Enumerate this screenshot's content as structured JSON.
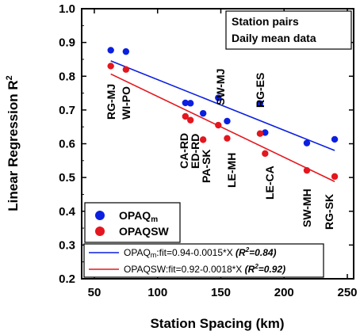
{
  "chart_data": {
    "type": "scatter",
    "xlabel": "Station Spacing (km)",
    "ylabel": "Linear Regression R",
    "ylabel_sup": "2",
    "xlim": [
      40,
      255
    ],
    "ylim": [
      0.2,
      1.0
    ],
    "xticks": [
      "50",
      "100",
      "150",
      "200",
      "250"
    ],
    "yticks": [
      "0.2",
      "0.3",
      "0.4",
      "0.5",
      "0.6",
      "0.7",
      "0.8",
      "0.9",
      "1.0"
    ],
    "xtick_values": [
      50,
      100,
      150,
      200,
      250
    ],
    "ytick_values": [
      0.2,
      0.3,
      0.4,
      0.5,
      0.6,
      0.7,
      0.8,
      0.9,
      1.0
    ],
    "annotation": [
      "Station pairs",
      "Daily mean data"
    ],
    "colors": {
      "blue": "#0b1fe0",
      "red": "#e4161e"
    },
    "series": [
      {
        "name": "OPAQm",
        "legend_main": "OPAQ",
        "legend_sub": "m",
        "color": "#0b1fe0",
        "x": [
          63,
          75,
          122,
          126,
          136,
          148,
          155,
          181,
          185,
          218,
          240
        ],
        "y": [
          0.877,
          0.873,
          0.721,
          0.72,
          0.69,
          0.736,
          0.667,
          0.719,
          0.633,
          0.602,
          0.613
        ],
        "fit": {
          "intercept": 0.94,
          "slope": -0.0015,
          "x_range": [
            63,
            240
          ]
        },
        "fit_label_main": "OPAQ",
        "fit_label_sub": "m",
        "fit_label_rest": ":fit=0.94-0.0015*X",
        "fit_r2": "(R",
        "fit_r2_sup": "2",
        "fit_r2_val": "=0.84)"
      },
      {
        "name": "OPAQSW",
        "legend_main": "OPAQSW",
        "legend_sub": "",
        "color": "#e4161e",
        "x": [
          63,
          75,
          122,
          126,
          136,
          148,
          155,
          181,
          185,
          218,
          240
        ],
        "y": [
          0.83,
          0.82,
          0.681,
          0.67,
          0.612,
          0.655,
          0.616,
          0.63,
          0.571,
          0.521,
          0.503
        ],
        "fit": {
          "intercept": 0.92,
          "slope": -0.0018,
          "x_range": [
            63,
            240
          ]
        },
        "fit_label_main": "OPAQSW",
        "fit_label_sub": "",
        "fit_label_rest": ":fit=0.92-0.0018*X",
        "fit_r2": "(R",
        "fit_r2_sup": "2",
        "fit_r2_val": "=0.92)"
      }
    ],
    "point_labels": [
      "RG-MJ",
      "WI-PO",
      "CA-RD",
      "ED-RD",
      "PA-SK",
      "SW-MJ",
      "LE-MH",
      "RG-ES",
      "LE-CA",
      "SW-MH",
      "RG-SK"
    ],
    "grid": false,
    "legend_placement": "bottom-left"
  }
}
